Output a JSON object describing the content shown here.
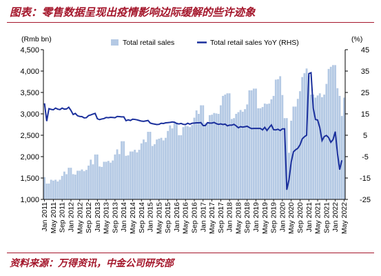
{
  "title": "图表：零售数据呈现出疫情影响边际缓解的些许迹象",
  "source": "资料来源：万得资讯，中金公司研究部",
  "colors": {
    "accent": "#a4162b",
    "bars": "#b4c9e4",
    "line": "#1a2f9c"
  },
  "chart_data": {
    "type": "bar+line",
    "left_unit": "(Rmb bn)",
    "right_unit": "(%)",
    "ylim_left": [
      1000,
      4500
    ],
    "left_ticks": [
      "1,000",
      "1,500",
      "2,000",
      "2,500",
      "3,000",
      "3,500",
      "4,000",
      "4,500"
    ],
    "ylim_right": [
      -25,
      45
    ],
    "right_ticks": [
      "-25",
      "-15",
      "-5",
      "5",
      "15",
      "25",
      "35",
      "45"
    ],
    "x_tick_labels": [
      "Jan 2011",
      "May 2011",
      "Sep 2011",
      "Jan 2012",
      "May 2012",
      "Sep 2012",
      "Jan 2013",
      "May 2013",
      "Sep 2013",
      "Jan 2014",
      "May 2014",
      "Sep 2014",
      "Jan 2015",
      "May 2015",
      "Sep 2015",
      "Jan 2016",
      "May 2016",
      "Sep 2016",
      "Jan 2017",
      "May 2017",
      "Sep 2017",
      "Jan 2018",
      "May 2018",
      "Sep 2018",
      "Jan 2019",
      "May 2019",
      "Sep 2019",
      "Jan 2020",
      "May 2020",
      "Sep 2020",
      "Jan 2021",
      "May 2021",
      "Sep 2021",
      "Jan 2022",
      "May 2022"
    ],
    "legend": {
      "bars": "Total retail sales",
      "line": "Total retail sales YoY (RHS)"
    },
    "start_month": "2011-01",
    "series": [
      {
        "name": "Total retail sales",
        "axis": "left",
        "type": "bar",
        "values": [
          1520,
          1370,
          1370,
          1460,
          1440,
          1460,
          1420,
          1460,
          1550,
          1650,
          1590,
          1740,
          1740,
          1590,
          1580,
          1670,
          1670,
          1700,
          1660,
          1690,
          1790,
          1930,
          1820,
          2050,
          2050,
          1770,
          1760,
          1880,
          1880,
          1900,
          1860,
          1910,
          2050,
          2170,
          2060,
          2360,
          2360,
          2020,
          2030,
          2120,
          2120,
          2160,
          2100,
          2160,
          2310,
          2400,
          2340,
          2580,
          2580,
          2250,
          2290,
          2400,
          2420,
          2440,
          2380,
          2440,
          2600,
          2730,
          2660,
          2800,
          2800,
          2500,
          2500,
          2690,
          2720,
          2710,
          2690,
          2740,
          2910,
          3080,
          3000,
          3200,
          3200,
          2780,
          2780,
          2970,
          2980,
          3020,
          3010,
          3000,
          3200,
          3420,
          3450,
          3480,
          3480,
          2880,
          2900,
          3000,
          3040,
          3090,
          3050,
          3110,
          3220,
          3550,
          3550,
          3590,
          3590,
          3130,
          3130,
          3160,
          3240,
          3230,
          3240,
          3340,
          3420,
          3800,
          3810,
          3880,
          3440,
          2900,
          2900,
          2090,
          2840,
          3170,
          3170,
          3350,
          3530,
          3860,
          3950,
          4060,
          3900,
          3450,
          3450,
          3380,
          3430,
          3480,
          3390,
          3450,
          3700,
          4050,
          4100,
          4140,
          4140,
          3600,
          3420,
          2950,
          3380
        ]
      },
      {
        "name": "Total retail sales YoY",
        "axis": "right",
        "type": "line",
        "values": [
          19.9,
          11.6,
          17.4,
          17.1,
          16.9,
          17.7,
          17.2,
          17.0,
          17.7,
          17.2,
          17.3,
          18.1,
          16.6,
          14.7,
          15.2,
          14.1,
          13.8,
          13.7,
          13.1,
          13.2,
          14.2,
          14.5,
          14.9,
          15.2,
          12.7,
          12.3,
          12.6,
          12.8,
          13.3,
          13.2,
          13.4,
          13.3,
          13.2,
          13.8,
          13.7,
          13.6,
          13.6,
          11.8,
          12.2,
          11.9,
          12.5,
          12.4,
          12.2,
          11.9,
          11.6,
          11.5,
          11.7,
          11.9,
          10.7,
          10.4,
          10.2,
          10.0,
          10.1,
          10.6,
          10.5,
          10.8,
          10.9,
          11.0,
          11.2,
          11.1,
          10.5,
          10.3,
          10.5,
          10.1,
          10.0,
          10.6,
          10.2,
          10.6,
          10.7,
          10.8,
          10.8,
          10.9,
          9.5,
          9.5,
          10.9,
          10.7,
          10.7,
          11.0,
          10.4,
          10.1,
          10.3,
          10.0,
          10.2,
          9.4,
          9.7,
          9.7,
          10.1,
          9.4,
          8.5,
          9.0,
          8.8,
          9.0,
          9.2,
          8.6,
          8.1,
          8.2,
          8.2,
          8.2,
          8.2,
          7.5,
          8.7,
          7.2,
          8.6,
          9.8,
          7.6,
          7.5,
          7.8,
          7.2,
          8.0,
          8.0,
          -20.5,
          -15.8,
          -7.5,
          -2.8,
          -1.8,
          -1.1,
          0.5,
          3.3,
          4.3,
          5.0,
          33.8,
          34.2,
          17.7,
          12.4,
          12.1,
          8.5,
          2.5,
          4.4,
          4.9,
          3.9,
          1.7,
          3.0,
          6.7,
          -3.5,
          -11.1,
          -6.7
        ]
      }
    ]
  }
}
